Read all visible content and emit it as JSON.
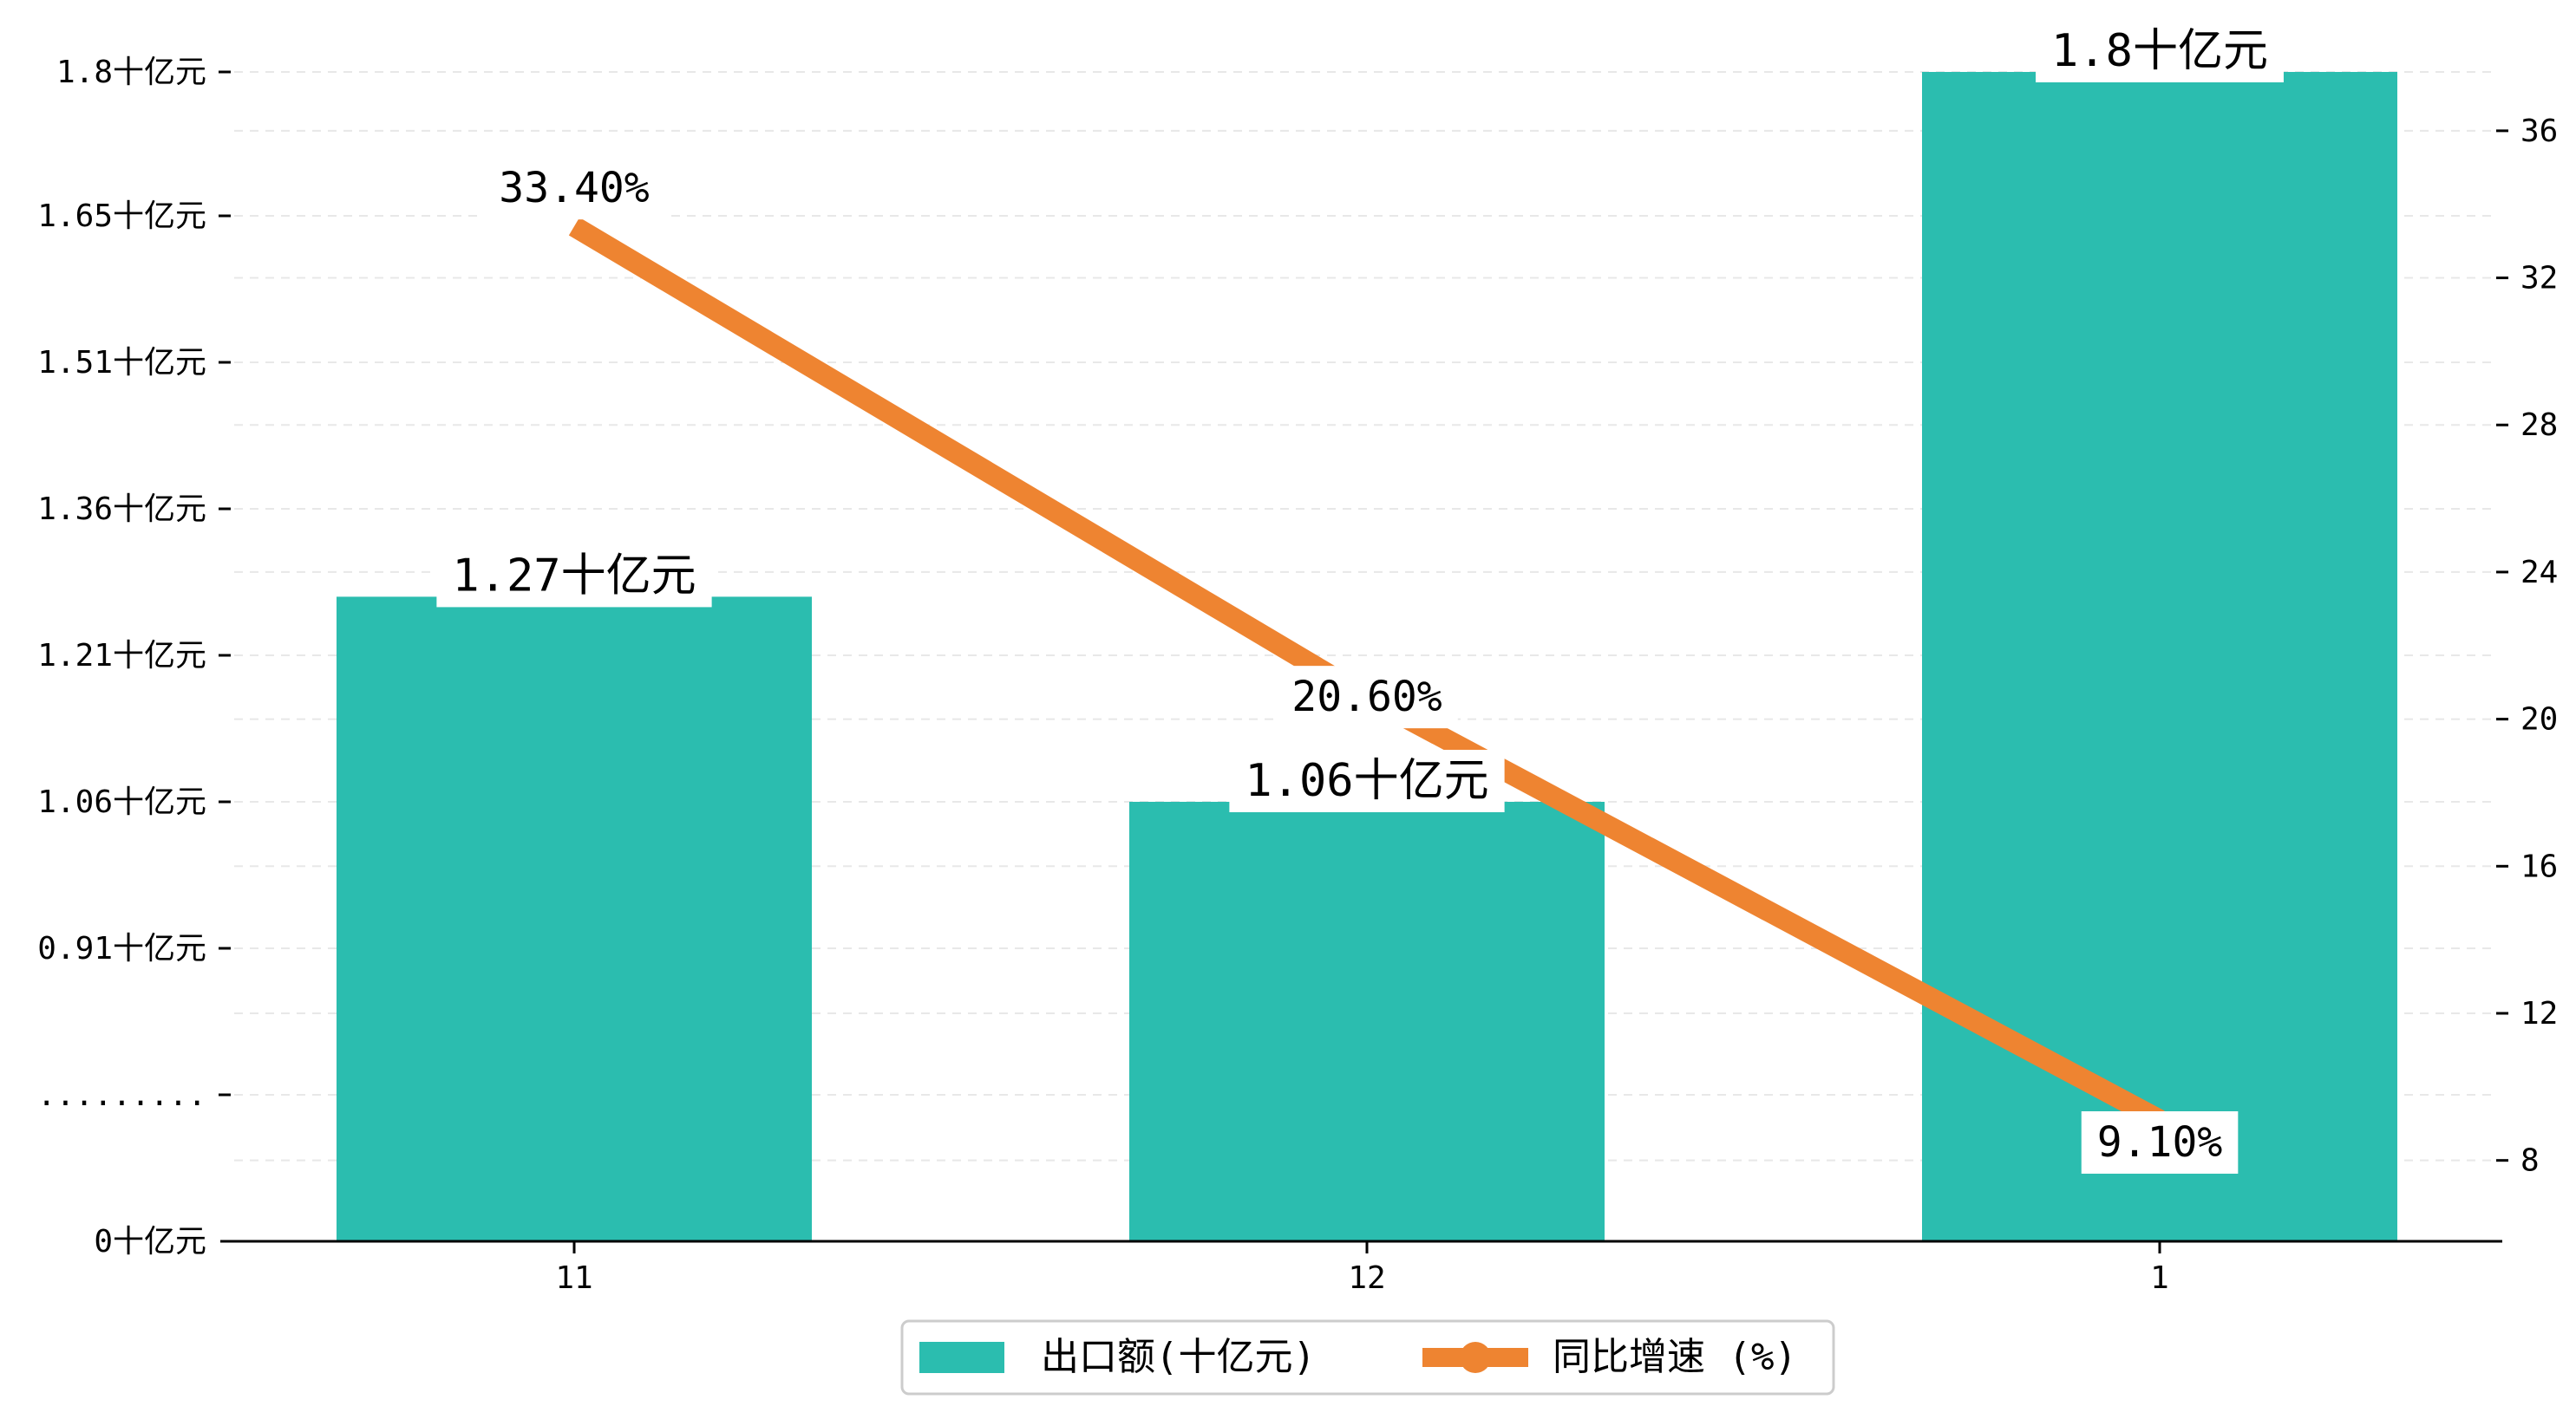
{
  "chart_data": {
    "type": "bar",
    "categories": [
      "11",
      "12",
      "1"
    ],
    "series": [
      {
        "name": "出口额(十亿元)",
        "type": "bar",
        "axis": "left",
        "values": [
          1.27,
          1.06,
          1.8
        ],
        "labels": [
          "1.27十亿元",
          "1.06十亿元",
          "1.8十亿元"
        ]
      },
      {
        "name": "同比增速 (%)",
        "type": "line",
        "axis": "right",
        "values": [
          33.4,
          20.6,
          9.1
        ],
        "labels": [
          "33.40%",
          "20.60%",
          "9.10%"
        ]
      }
    ],
    "left_axis": {
      "ticks": [
        {
          "value": 0,
          "label": "0十亿元"
        },
        {
          "value": 0.75,
          "label": "........."
        },
        {
          "value": 0.91,
          "label": "0.91十亿元"
        },
        {
          "value": 1.06,
          "label": "1.06十亿元"
        },
        {
          "value": 1.21,
          "label": "1.21十亿元"
        },
        {
          "value": 1.36,
          "label": "1.36十亿元"
        },
        {
          "value": 1.51,
          "label": "1.51十亿元"
        },
        {
          "value": 1.65,
          "label": "1.65十亿元"
        },
        {
          "value": 1.8,
          "label": "1.8十亿元"
        }
      ],
      "broken_axis": true
    },
    "right_axis": {
      "ticks": [
        8,
        12,
        16,
        20,
        24,
        28,
        32,
        36
      ],
      "ylim": [
        5.8,
        37.6
      ]
    },
    "grid": true,
    "legend_position": "bottom-center",
    "colors": {
      "bar": "#2bbdaf",
      "line": "#ee8431",
      "grid": "#e8e8e8",
      "axis": "#000000"
    }
  }
}
